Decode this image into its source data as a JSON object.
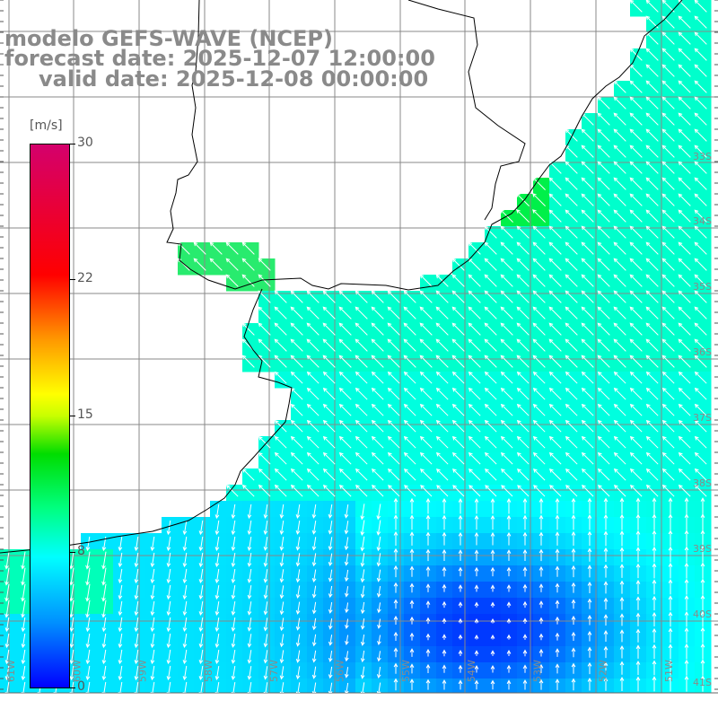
{
  "header": {
    "title": "modelo GEFS-WAVE (NCEP)",
    "forecast": "forecast date: 2025-12-07 12:00:00",
    "valid": "valid date: 2025-12-08 00:00:00"
  },
  "colorbar": {
    "unit": "[m/s]",
    "ticks": [
      "30",
      "22",
      "15",
      "8",
      "0"
    ],
    "range": [
      0,
      30
    ],
    "colors": [
      "#0000ff",
      "#0090ff",
      "#00ffff",
      "#00ff80",
      "#00dd00",
      "#ffff00",
      "#ff9900",
      "#ff0000",
      "#d4006c"
    ]
  },
  "map": {
    "lon_labels": [
      "61W",
      "60W",
      "59W",
      "58W",
      "57W",
      "56W",
      "55W",
      "54W",
      "53W",
      "52W",
      "51W"
    ],
    "lat_labels": [
      "33S",
      "34S",
      "35S",
      "36S",
      "37S",
      "38S",
      "39S",
      "40S",
      "41S"
    ],
    "land_color": "#ffffff",
    "arrow_color": "#ffffff",
    "grid_color": "#888888"
  }
}
